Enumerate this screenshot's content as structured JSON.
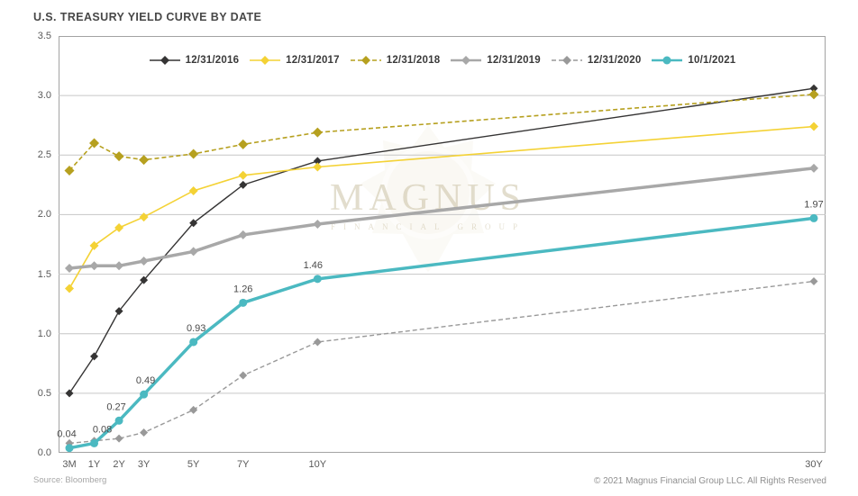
{
  "header": {
    "title": "U.S. TREASURY YIELD CURVE BY DATE"
  },
  "watermark": {
    "line1": "MAGNUS",
    "line2": "FINANCIAL GROUP"
  },
  "footer": {
    "source": "Source: Bloomberg",
    "copyright": "© 2021 Magnus Financial Group LLC. All Rights Reserved"
  },
  "chart_data": {
    "type": "line",
    "title": "U.S. TREASURY YIELD CURVE BY DATE",
    "categories": [
      "3M",
      "1Y",
      "2Y",
      "3Y",
      "5Y",
      "7Y",
      "10Y",
      "30Y"
    ],
    "x_years": [
      0,
      1,
      2,
      3,
      5,
      7,
      10,
      30
    ],
    "ylim": [
      0,
      3.5
    ],
    "yticks": [
      0.0,
      0.5,
      1.0,
      1.5,
      2.0,
      2.5,
      3.0,
      3.5
    ],
    "grid": "horizontal-only",
    "legend_position": "top-center-inside",
    "colors": {
      "gridline": "#c6c6c6",
      "plot_border": "#a3a3a3",
      "point_label": "#4a4a4a"
    },
    "series": [
      {
        "name": "12/31/2016",
        "color": "#353434",
        "dash": "none",
        "width": 1.4,
        "marker": "diamond",
        "marker_size": 9,
        "values": [
          0.5,
          0.81,
          1.19,
          1.45,
          1.93,
          2.25,
          2.45,
          3.06
        ]
      },
      {
        "name": "12/31/2017",
        "color": "#F4D235",
        "dash": "none",
        "width": 1.6,
        "marker": "diamond",
        "marker_size": 10,
        "values": [
          1.38,
          1.74,
          1.89,
          1.98,
          2.2,
          2.33,
          2.4,
          2.74
        ]
      },
      {
        "name": "12/31/2018",
        "color": "#B6A01F",
        "dash": "5,3",
        "width": 1.6,
        "marker": "diamond",
        "marker_size": 11,
        "values": [
          2.37,
          2.6,
          2.49,
          2.46,
          2.51,
          2.59,
          2.69,
          3.01
        ]
      },
      {
        "name": "12/31/2019",
        "color": "#A8A8A8",
        "dash": "none",
        "width": 3.5,
        "marker": "diamond",
        "marker_size": 10,
        "values": [
          1.55,
          1.57,
          1.57,
          1.61,
          1.69,
          1.83,
          1.92,
          2.39
        ]
      },
      {
        "name": "12/31/2020",
        "color": "#999999",
        "dash": "5,3",
        "width": 1.4,
        "marker": "diamond",
        "marker_size": 9,
        "values": [
          0.08,
          0.1,
          0.12,
          0.17,
          0.36,
          0.65,
          0.93,
          1.44
        ]
      },
      {
        "name": "10/1/2021",
        "color": "#4BB9C1",
        "dash": "none",
        "width": 3.5,
        "marker": "circle",
        "marker_size": 9,
        "values": [
          0.04,
          0.08,
          0.27,
          0.49,
          0.93,
          1.26,
          1.46,
          1.97
        ],
        "point_labels": [
          "0.04",
          "0.08",
          "0.27",
          "0.49",
          "0.93",
          "1.26",
          "1.46",
          "1.97"
        ]
      }
    ]
  }
}
